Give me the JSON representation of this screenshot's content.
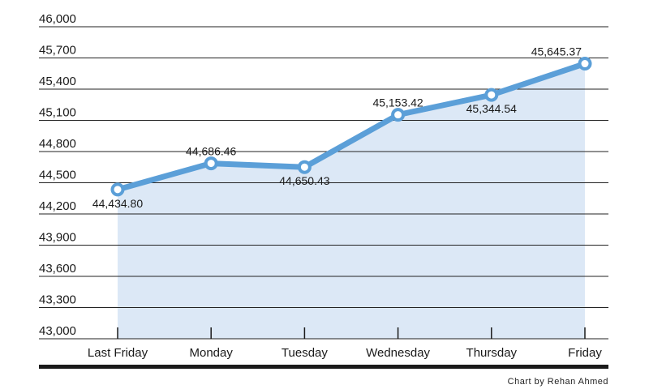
{
  "chart_data": {
    "type": "line",
    "title": "",
    "xlabel": "",
    "ylabel": "",
    "categories": [
      "Last Friday",
      "Monday",
      "Tuesday",
      "Wednesday",
      "Thursday",
      "Friday"
    ],
    "series": [
      {
        "values": [
          44434.8,
          44686.46,
          44650.43,
          45153.42,
          45344.54,
          45645.37
        ],
        "labels": [
          "44,434.80",
          "44,686.46",
          "44,650.43",
          "45,153.42",
          "45,344.54",
          "45,645.37"
        ],
        "label_positions": [
          "below",
          "above",
          "below",
          "above",
          "below",
          "above"
        ]
      }
    ],
    "ylim": [
      43000,
      46000
    ],
    "yticks": [
      43000,
      43300,
      43600,
      43900,
      44200,
      44500,
      44800,
      45100,
      45400,
      45700,
      46000
    ],
    "ytick_labels": [
      "43,000",
      "43,300",
      "43,600",
      "43,900",
      "44,200",
      "44,500",
      "44,800",
      "45,100",
      "45,400",
      "45,700",
      "46,000"
    ],
    "grid": true,
    "legend": "none",
    "colors": {
      "line": "#5b9fd8",
      "fill": "#dce8f6",
      "grid": "#222222",
      "axis": "#1a1a1a",
      "marker_fill": "#ffffff"
    }
  },
  "credit": "Chart by Rehan Ahmed"
}
